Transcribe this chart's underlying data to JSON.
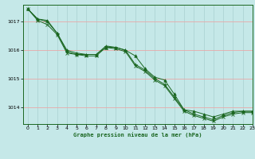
{
  "title": "Graphe pression niveau de la mer (hPa)",
  "bg_color": "#c5e8e8",
  "grid_color_v": "#aed4d4",
  "grid_color_h": "#e8a8a8",
  "line_color": "#1a6620",
  "xlim": [
    -0.5,
    23
  ],
  "ylim": [
    1013.4,
    1017.6
  ],
  "yticks": [
    1014,
    1015,
    1016,
    1017
  ],
  "xticks": [
    0,
    1,
    2,
    3,
    4,
    5,
    6,
    7,
    8,
    9,
    10,
    11,
    12,
    13,
    14,
    15,
    16,
    17,
    18,
    19,
    20,
    21,
    22,
    23
  ],
  "series": [
    [
      1017.45,
      1017.1,
      1017.05,
      1016.6,
      1016.0,
      1015.9,
      1015.85,
      1015.85,
      1016.1,
      1016.1,
      1016.0,
      1015.8,
      1015.35,
      1015.05,
      1014.95,
      1014.45,
      1013.9,
      1013.85,
      1013.75,
      1013.65,
      1013.75,
      1013.85,
      1013.85,
      1013.85
    ],
    [
      1017.45,
      1017.1,
      1017.0,
      1016.6,
      1015.95,
      1015.85,
      1015.85,
      1015.85,
      1016.15,
      1016.1,
      1016.0,
      1015.5,
      1015.3,
      1015.0,
      1014.8,
      1014.35,
      1013.9,
      1013.75,
      1013.65,
      1013.55,
      1013.7,
      1013.8,
      1013.85,
      1013.85
    ],
    [
      1017.45,
      1017.05,
      1016.9,
      1016.55,
      1015.9,
      1015.85,
      1015.8,
      1015.8,
      1016.1,
      1016.05,
      1015.95,
      1015.45,
      1015.25,
      1014.95,
      1014.75,
      1014.3,
      1013.85,
      1013.7,
      1013.6,
      1013.5,
      1013.65,
      1013.75,
      1013.8,
      1013.8
    ]
  ]
}
